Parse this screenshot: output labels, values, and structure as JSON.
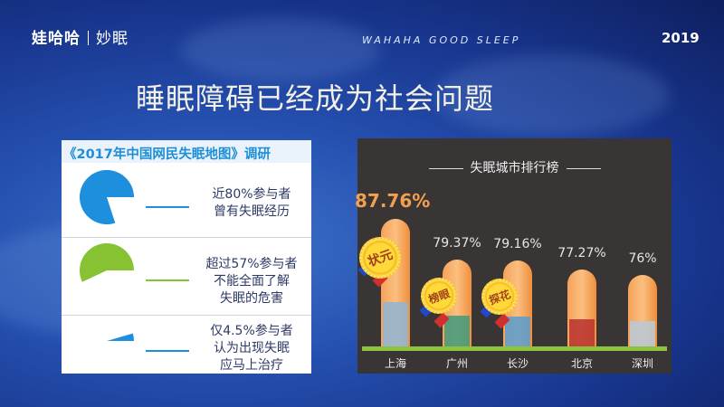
{
  "header": {
    "logo_main": "娃哈哈",
    "logo_sub": "妙眠",
    "tagline": "WAHAHA GOOD SLEEP",
    "year": "2019"
  },
  "title": "睡眠障碍已经成为社会问题",
  "survey": {
    "heading": "《2017年中国网民失眠地图》调研",
    "items": [
      {
        "percent": 80,
        "color": "#1d8fdc",
        "lines": [
          "近80%参与者",
          "曾有失眠经历"
        ]
      },
      {
        "percent": 57,
        "color": "#86c232",
        "lines": [
          "超过57%参与者",
          "不能全面了解",
          "失眠的危害"
        ]
      },
      {
        "percent": 4.5,
        "color": "#1d8fdc",
        "lines": [
          "仅4.5%参与者",
          "认为出现失眠",
          "应马上治疗"
        ]
      }
    ]
  },
  "chart_data": {
    "type": "bar",
    "title": "失眠城市排行榜",
    "categories": [
      "上海",
      "广州",
      "长沙",
      "北京",
      "深圳"
    ],
    "values": [
      87.76,
      79.37,
      79.16,
      77.27,
      76
    ],
    "value_labels": [
      "87.76%",
      "79.37%",
      "79.16%",
      "77.27%",
      "76%"
    ],
    "medals": [
      "状元",
      "榜眼",
      "探花"
    ],
    "colors": {
      "bar": "#f6a15a",
      "top_label": "#f0a050",
      "label": "#e6e6e6",
      "background": "#3a3535",
      "ground": "#8fc23f"
    }
  }
}
